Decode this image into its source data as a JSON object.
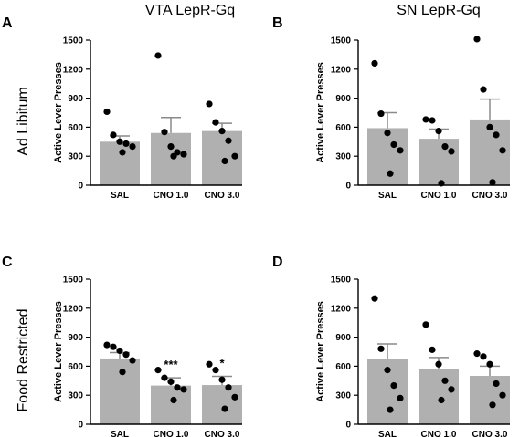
{
  "figure": {
    "column_titles": [
      "VTA LepR-Gq",
      "SN LepR-Gq"
    ],
    "row_labels": [
      "Ad Libitum",
      "Food Restricted"
    ]
  },
  "colors": {
    "bar": "#b0b0b0",
    "error": "#8a8a8a",
    "point": "#000000",
    "axis": "#000000"
  },
  "chart_data": [
    {
      "panel": "A",
      "type": "bar",
      "ylabel": "Active  Lever  Presses",
      "ylim": [
        0,
        1500
      ],
      "yticks": [
        0,
        300,
        600,
        900,
        1200,
        1500
      ],
      "categories": [
        "SAL",
        "CNO 1.0",
        "CNO 3.0"
      ],
      "values": [
        450,
        540,
        560
      ],
      "error": [
        60,
        160,
        80
      ],
      "points": [
        [
          760,
          520,
          450,
          430,
          400,
          340
        ],
        [
          1340,
          550,
          400,
          340,
          320,
          300
        ],
        [
          840,
          650,
          560,
          460,
          300,
          250
        ]
      ],
      "significance": [
        "",
        "",
        ""
      ]
    },
    {
      "panel": "B",
      "type": "bar",
      "ylabel": "Active  Lever  Presses",
      "ylim": [
        0,
        1500
      ],
      "yticks": [
        0,
        300,
        600,
        900,
        1200,
        1500
      ],
      "categories": [
        "SAL",
        "CNO 1.0",
        "CNO 3.0"
      ],
      "values": [
        590,
        480,
        680
      ],
      "error": [
        160,
        100,
        210
      ],
      "points": [
        [
          1260,
          740,
          540,
          420,
          360,
          120
        ],
        [
          680,
          670,
          560,
          400,
          350,
          20
        ],
        [
          1510,
          990,
          600,
          520,
          360,
          30
        ]
      ],
      "significance": [
        "",
        "",
        ""
      ]
    },
    {
      "panel": "C",
      "type": "bar",
      "ylabel": "Active  Lever  Presses",
      "ylim": [
        0,
        1500
      ],
      "yticks": [
        0,
        300,
        600,
        900,
        1200,
        1500
      ],
      "categories": [
        "SAL",
        "CNO 1.0",
        "CNO 3.0"
      ],
      "values": [
        680,
        400,
        405
      ],
      "error": [
        60,
        80,
        90
      ],
      "points": [
        [
          820,
          800,
          760,
          720,
          660,
          540
        ],
        [
          560,
          480,
          440,
          380,
          360,
          250
        ],
        [
          620,
          560,
          460,
          380,
          280,
          160
        ]
      ],
      "significance": [
        "",
        "***",
        "*"
      ]
    },
    {
      "panel": "D",
      "type": "bar",
      "ylabel": "Active  Lever  Presses",
      "ylim": [
        0,
        1500
      ],
      "yticks": [
        0,
        300,
        600,
        900,
        1200,
        1500
      ],
      "categories": [
        "SAL",
        "CNO 1.0",
        "CNO 3.0"
      ],
      "values": [
        670,
        570,
        500
      ],
      "error": [
        160,
        120,
        100
      ],
      "points": [
        [
          1300,
          780,
          560,
          400,
          270,
          150
        ],
        [
          1030,
          770,
          620,
          450,
          360,
          250
        ],
        [
          730,
          700,
          620,
          420,
          300,
          200
        ]
      ],
      "significance": [
        "",
        "",
        ""
      ]
    }
  ]
}
